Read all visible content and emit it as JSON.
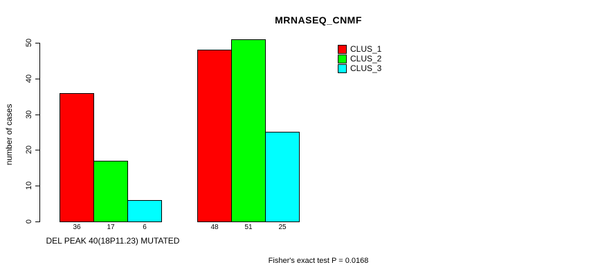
{
  "page": {
    "background": "#ffffff",
    "text_color": "#000000",
    "axis_color": "#000000"
  },
  "chart_data": {
    "type": "bar",
    "title": "MRNASEQ_CNMF",
    "xlabel": "DEL PEAK 40(18P11.23) MUTATED",
    "ylabel": "number of cases",
    "ylim": [
      0,
      50
    ],
    "yticks": [
      0,
      10,
      20,
      30,
      40,
      50
    ],
    "grid": false,
    "legend_position": "top-right-inside",
    "n_groups": 2,
    "series": [
      {
        "name": "CLUS_1",
        "color": "#ff0000",
        "values": [
          36,
          48
        ]
      },
      {
        "name": "CLUS_2",
        "color": "#00ff00",
        "values": [
          17,
          51
        ]
      },
      {
        "name": "CLUS_3",
        "color": "#00ffff",
        "values": [
          6,
          25
        ]
      }
    ],
    "bar_value_labels": [
      [
        "36",
        "17",
        "6"
      ],
      [
        "48",
        "51",
        "25"
      ]
    ],
    "show_bar_value_labels": true
  },
  "annotation": {
    "fisher_test": "Fisher's exact test P = 0.0168"
  }
}
